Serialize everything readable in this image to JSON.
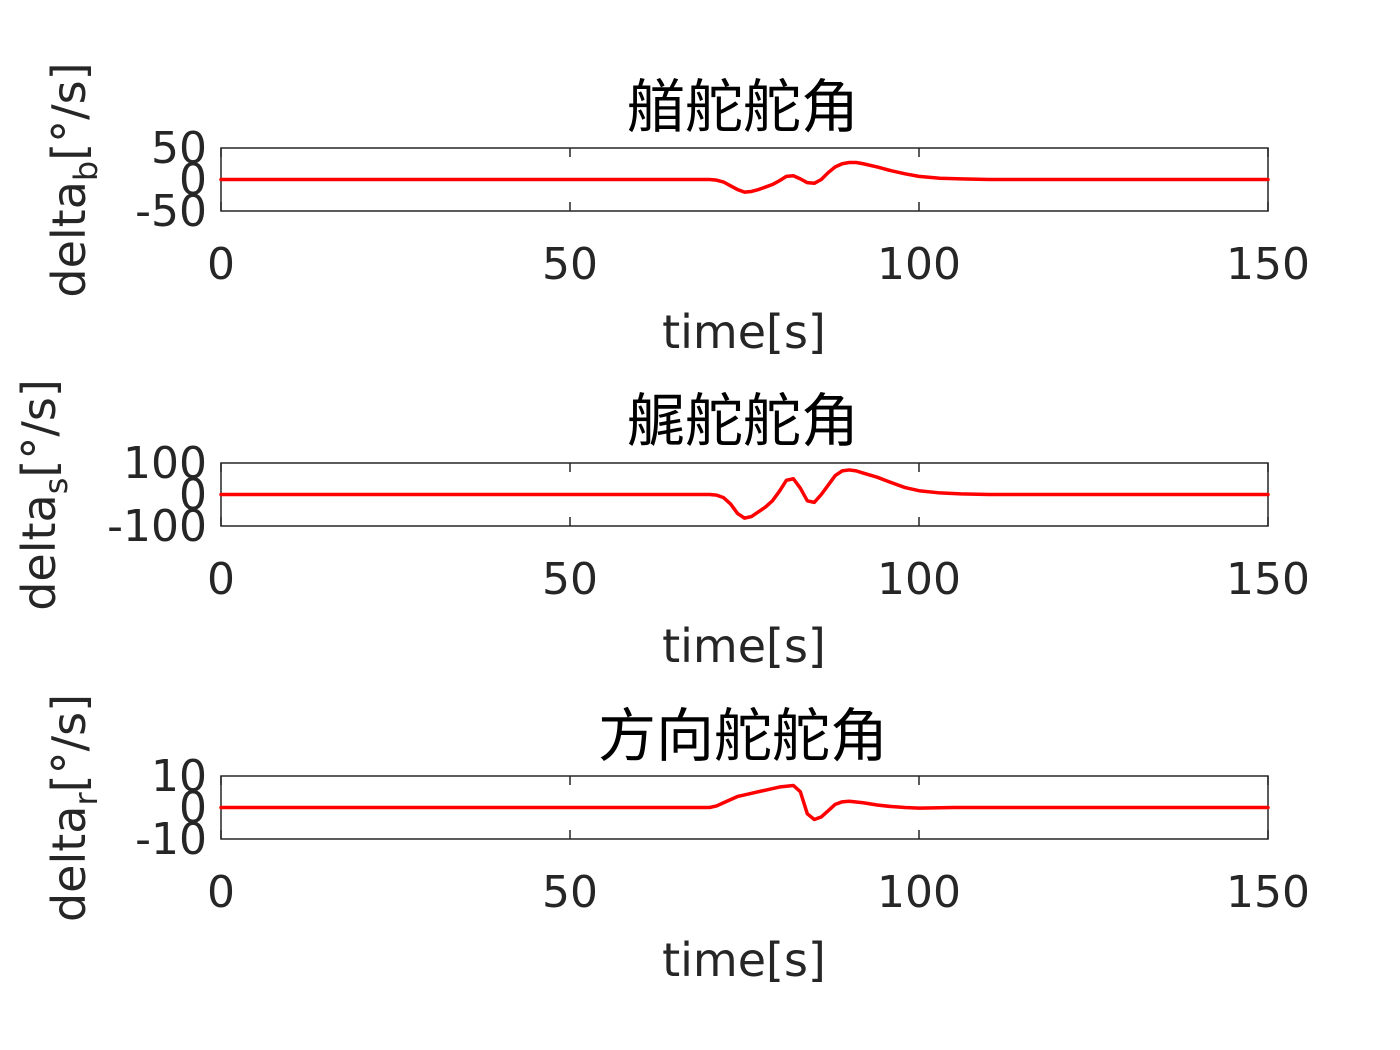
{
  "figure": {
    "background": "#ffffff",
    "line_color": "#ff0000"
  },
  "chart_data": [
    {
      "type": "line",
      "title": "艏舵舵角",
      "xlabel": "time[s]",
      "ylabel": "delta",
      "ylabel_sub": "b",
      "ylabel_unit": "[°/s]",
      "xlim": [
        0,
        150
      ],
      "ylim": [
        -50,
        50
      ],
      "xticks": [
        0,
        50,
        100,
        150
      ],
      "yticks": [
        50,
        0,
        -50
      ],
      "xtick_labels": [
        "0",
        "50",
        "100",
        "150"
      ],
      "ytick_labels": [
        "50",
        "0",
        "-50"
      ],
      "grid": false,
      "series": [
        {
          "color": "#ff0000",
          "x": [
            0,
            70,
            71,
            72,
            73,
            74,
            75,
            76,
            77,
            78,
            79,
            80,
            81,
            82,
            83,
            84,
            85,
            86,
            87,
            88,
            89,
            90,
            91,
            92,
            94,
            96,
            98,
            100,
            103,
            106,
            110,
            120,
            150
          ],
          "y": [
            0,
            0,
            -1,
            -4,
            -10,
            -16,
            -20,
            -19,
            -16,
            -12,
            -8,
            -2,
            5,
            6,
            1,
            -5,
            -6,
            0,
            11,
            20,
            25,
            27,
            27,
            25,
            20,
            14,
            9,
            5,
            2,
            1,
            0,
            0,
            0
          ]
        }
      ]
    },
    {
      "type": "line",
      "title": "艉舵舵角",
      "xlabel": "time[s]",
      "ylabel": "delta",
      "ylabel_sub": "s",
      "ylabel_unit": "[°/s]",
      "xlim": [
        0,
        150
      ],
      "ylim": [
        -100,
        100
      ],
      "xticks": [
        0,
        50,
        100,
        150
      ],
      "yticks": [
        100,
        0,
        -100
      ],
      "xtick_labels": [
        "0",
        "50",
        "100",
        "150"
      ],
      "ytick_labels": [
        "100",
        "0",
        "-100"
      ],
      "grid": false,
      "series": [
        {
          "color": "#ff0000",
          "x": [
            0,
            70,
            71,
            72,
            73,
            74,
            75,
            76,
            77,
            78,
            79,
            80,
            81,
            82,
            83,
            84,
            85,
            86,
            87,
            88,
            89,
            90,
            91,
            92,
            94,
            96,
            98,
            100,
            103,
            106,
            110,
            120,
            150
          ],
          "y": [
            0,
            0,
            -2,
            -10,
            -30,
            -60,
            -75,
            -70,
            -55,
            -40,
            -20,
            10,
            45,
            50,
            20,
            -20,
            -25,
            0,
            30,
            60,
            75,
            78,
            75,
            68,
            55,
            38,
            22,
            12,
            5,
            2,
            0,
            0,
            0
          ]
        }
      ]
    },
    {
      "type": "line",
      "title": "方向舵舵角",
      "xlabel": "time[s]",
      "ylabel": "delta",
      "ylabel_sub": "r",
      "ylabel_unit": "[°/s]",
      "xlim": [
        0,
        150
      ],
      "ylim": [
        -10,
        10
      ],
      "xticks": [
        0,
        50,
        100,
        150
      ],
      "yticks": [
        10,
        0,
        -10
      ],
      "xtick_labels": [
        "0",
        "50",
        "100",
        "150"
      ],
      "ytick_labels": [
        "10",
        "0",
        "-10"
      ],
      "grid": false,
      "series": [
        {
          "color": "#ff0000",
          "x": [
            0,
            70,
            71,
            72,
            73,
            74,
            75,
            76,
            78,
            80,
            82,
            83,
            84,
            85,
            86,
            87,
            88,
            89,
            90,
            92,
            94,
            96,
            98,
            100,
            105,
            110,
            150
          ],
          "y": [
            0,
            0,
            0.5,
            1.5,
            2.5,
            3.5,
            4,
            4.5,
            5.5,
            6.5,
            7,
            5,
            -2,
            -3.8,
            -3,
            -1,
            1,
            1.8,
            2,
            1.5,
            0.8,
            0.3,
            0,
            -0.2,
            0,
            0,
            0
          ]
        }
      ]
    }
  ]
}
